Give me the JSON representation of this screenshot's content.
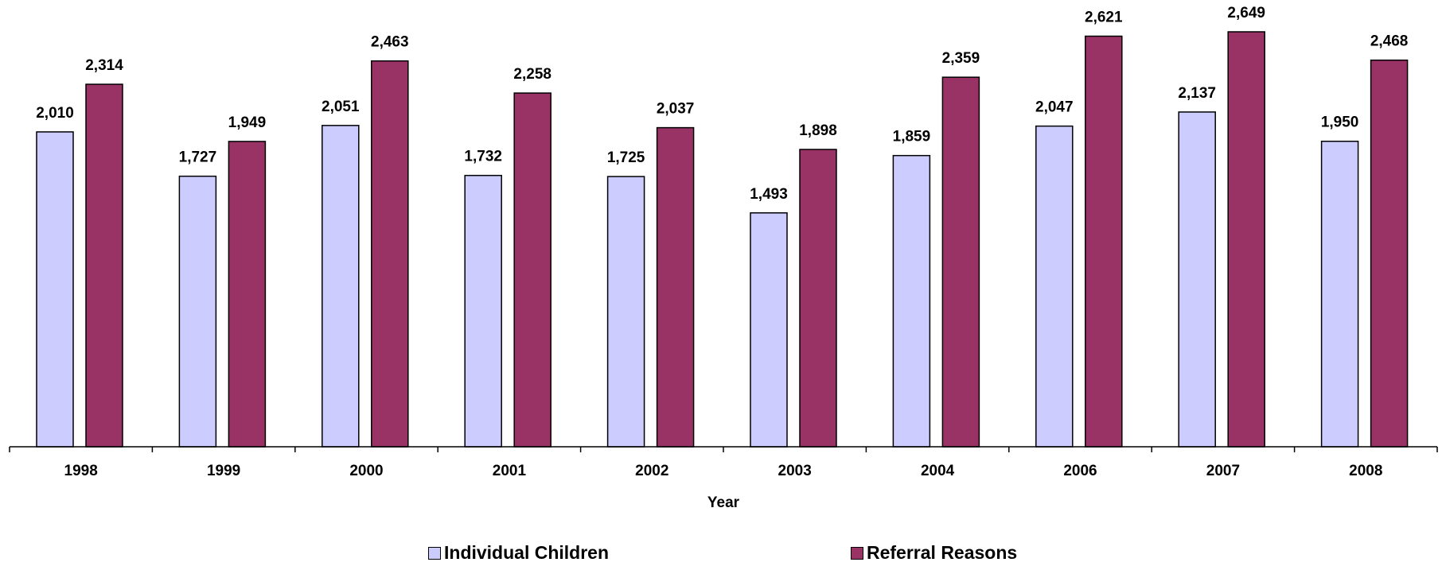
{
  "chart_data": {
    "type": "bar",
    "title": "",
    "xlabel": "Year",
    "ylabel": "",
    "ylim": [
      0,
      2800
    ],
    "grid": false,
    "legend_position": "bottom",
    "categories": [
      "1998",
      "1999",
      "2000",
      "2001",
      "2002",
      "2003",
      "2004",
      "2006",
      "2007",
      "2008"
    ],
    "series": [
      {
        "name": "Individual Children",
        "color": "#ccccff",
        "values": [
          2010,
          1727,
          2051,
          1732,
          1725,
          1493,
          1859,
          2047,
          2137,
          1950
        ],
        "labels": [
          "2,010",
          "1,727",
          "2,051",
          "1,732",
          "1,725",
          "1,493",
          "1,859",
          "2,047",
          "2,137",
          "1,950"
        ]
      },
      {
        "name": "Referral Reasons",
        "color": "#993366",
        "values": [
          2314,
          1949,
          2463,
          2258,
          2037,
          1898,
          2359,
          2621,
          2649,
          2468
        ],
        "labels": [
          "2,314",
          "1,949",
          "2,463",
          "2,258",
          "2,037",
          "1,898",
          "2,359",
          "2,621",
          "2,649",
          "2,468"
        ]
      }
    ]
  }
}
